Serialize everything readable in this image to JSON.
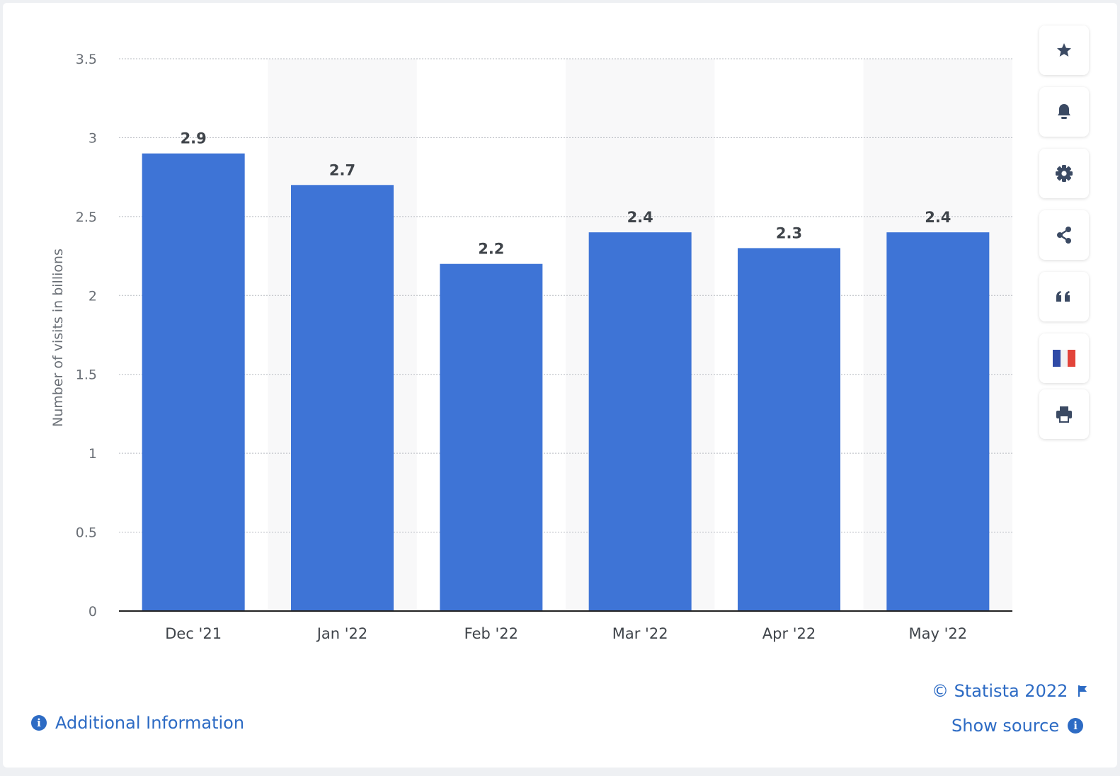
{
  "chart_data": {
    "type": "bar",
    "categories": [
      "Dec '21",
      "Jan '22",
      "Feb '22",
      "Mar '22",
      "Apr '22",
      "May '22"
    ],
    "values": [
      2.9,
      2.7,
      2.2,
      2.4,
      2.3,
      2.4
    ],
    "value_labels": [
      "2.9",
      "2.7",
      "2.2",
      "2.4",
      "2.3",
      "2.4"
    ],
    "ylabel": "Number of visits in billions",
    "xlabel": "",
    "ylim": [
      0,
      3.5
    ],
    "yticks": [
      0,
      0.5,
      1,
      1.5,
      2,
      2.5,
      3,
      3.5
    ],
    "ytick_labels": [
      "0",
      "0.5",
      "1",
      "1.5",
      "2",
      "2.5",
      "3",
      "3.5"
    ],
    "grid": true,
    "bar_color": "#3e74d6"
  },
  "toolbar": {
    "buttons": [
      "star-icon",
      "bell-icon",
      "gear-icon",
      "share-icon",
      "quote-icon",
      "flag-france-icon",
      "print-icon"
    ]
  },
  "footer": {
    "copyright": "© Statista 2022",
    "additional_info": "Additional Information",
    "show_source": "Show source"
  },
  "colors": {
    "link": "#2d6bc4",
    "bar": "#3e74d6",
    "icon": "#3b4a63"
  }
}
